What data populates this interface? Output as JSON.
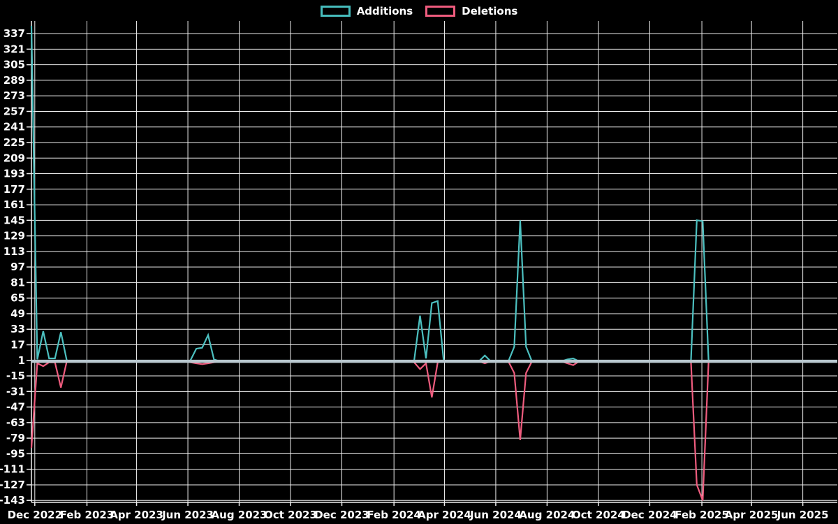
{
  "legend": {
    "items": [
      {
        "label": "Additions",
        "color": "#46bcbc"
      },
      {
        "label": "Deletions",
        "color": "#ef5c7e"
      }
    ]
  },
  "colors": {
    "background": "#000000",
    "grid": "#efefef",
    "axis_text": "#ffffff",
    "zero_line": "#b9c8cf",
    "additions": "#4cc0c0",
    "deletions": "#ef5c7e"
  },
  "chart_data": {
    "type": "line",
    "title": "",
    "legend_position": "top",
    "grid": true,
    "x_axis": {
      "start": "2022-11-27",
      "end": "2025-07-12",
      "tick_labels": [
        "Dec 2022",
        "Feb 2023",
        "Apr 2023",
        "Jun 2023",
        "Aug 2023",
        "Oct 2023",
        "Dec 2023",
        "Feb 2024",
        "Apr 2024",
        "Jun 2024",
        "Aug 2024",
        "Oct 2024",
        "Dec 2024",
        "Feb 2025",
        "Apr 2025",
        "Jun 2025"
      ]
    },
    "y_axis": {
      "min": -145,
      "max": 350,
      "ticks": [
        337,
        321,
        305,
        289,
        273,
        257,
        241,
        225,
        209,
        193,
        177,
        161,
        145,
        129,
        113,
        97,
        81,
        65,
        49,
        33,
        17,
        1,
        -15,
        -31,
        -47,
        -63,
        -79,
        -95,
        -111,
        -127,
        -143
      ]
    },
    "series": [
      {
        "name": "Additions",
        "color_key": "additions"
      },
      {
        "name": "Deletions",
        "color_key": "deletions"
      }
    ],
    "weekly_points": {
      "first_week": "2022-11-27",
      "last_week": "2025-07-06",
      "interval_days": 7,
      "default": {
        "additions": 0,
        "deletions": 0
      },
      "nonzero": [
        {
          "week": "2022-11-27",
          "additions": 345,
          "deletions": -89
        },
        {
          "week": "2022-12-04",
          "additions": 2,
          "deletions": -2
        },
        {
          "week": "2022-12-11",
          "additions": 31,
          "deletions": -5
        },
        {
          "week": "2022-12-18",
          "additions": 3,
          "deletions": -1
        },
        {
          "week": "2022-12-25",
          "additions": 3,
          "deletions": -1
        },
        {
          "week": "2023-01-01",
          "additions": 30,
          "deletions": -27
        },
        {
          "week": "2023-01-08",
          "additions": 1,
          "deletions": 0
        },
        {
          "week": "2023-06-04",
          "additions": 1,
          "deletions": -1
        },
        {
          "week": "2023-06-11",
          "additions": 13,
          "deletions": -2
        },
        {
          "week": "2023-06-18",
          "additions": 14,
          "deletions": -3
        },
        {
          "week": "2023-06-25",
          "additions": 27,
          "deletions": -2
        },
        {
          "week": "2023-07-02",
          "additions": 2,
          "deletions": -1
        },
        {
          "week": "2024-02-25",
          "additions": 1,
          "deletions": -1
        },
        {
          "week": "2024-03-03",
          "additions": 47,
          "deletions": -8
        },
        {
          "week": "2024-03-10",
          "additions": 3,
          "deletions": -2
        },
        {
          "week": "2024-03-17",
          "additions": 60,
          "deletions": -37
        },
        {
          "week": "2024-03-24",
          "additions": 62,
          "deletions": -1
        },
        {
          "week": "2024-03-31",
          "additions": 1,
          "deletions": 0
        },
        {
          "week": "2024-05-19",
          "additions": 6,
          "deletions": -2
        },
        {
          "week": "2024-06-23",
          "additions": 15,
          "deletions": -12
        },
        {
          "week": "2024-06-30",
          "additions": 145,
          "deletions": -81
        },
        {
          "week": "2024-07-07",
          "additions": 15,
          "deletions": -12
        },
        {
          "week": "2024-08-25",
          "additions": 2,
          "deletions": -2
        },
        {
          "week": "2024-09-01",
          "additions": 3,
          "deletions": -4
        },
        {
          "week": "2025-01-26",
          "additions": 145,
          "deletions": -127
        },
        {
          "week": "2025-02-02",
          "additions": 144,
          "deletions": -143
        }
      ],
      "note": "all weeks not listed are 0 additions / 0 deletions"
    }
  }
}
